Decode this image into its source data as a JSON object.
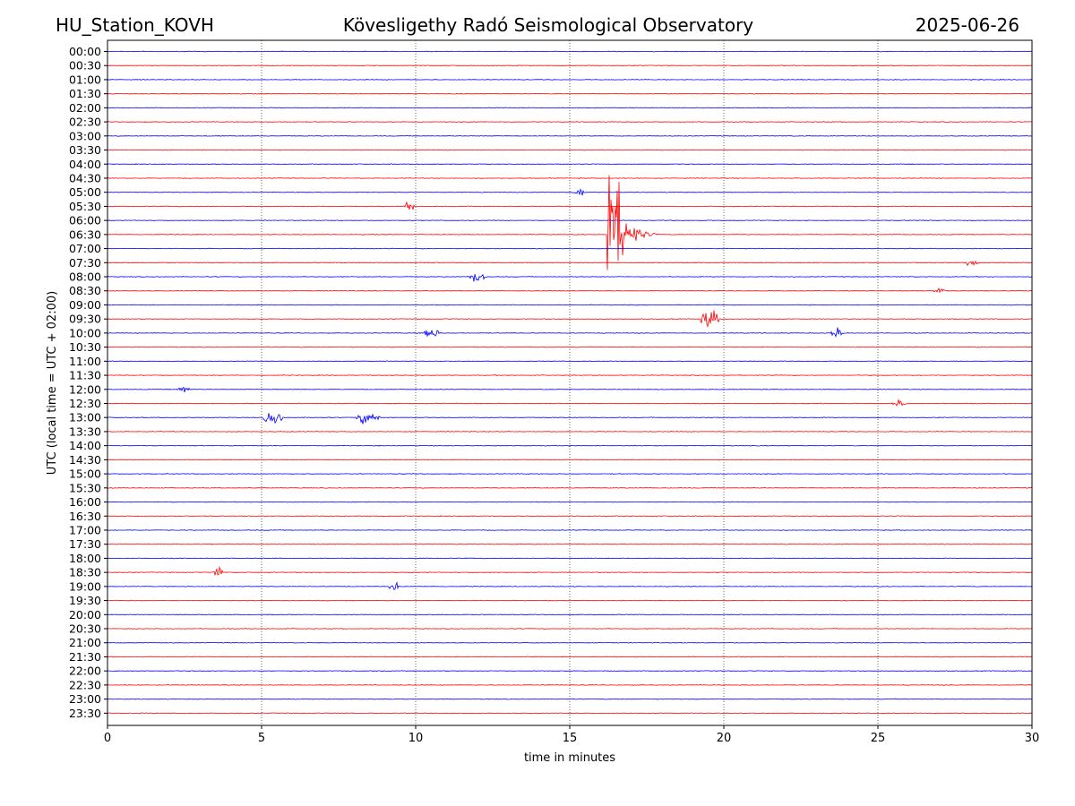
{
  "header": {
    "station": "HU_Station_KOVH",
    "title": "Kövesligethy Radó Seismological Observatory",
    "date": "2025-06-26"
  },
  "chart_data": {
    "type": "line",
    "title": "Kövesligethy Radó Seismological Observatory",
    "xlabel": "time in minutes",
    "ylabel": "UTC (local time = UTC + 02:00)",
    "xlim": [
      0,
      30
    ],
    "xticks": [
      "0",
      "5",
      "10",
      "15",
      "20",
      "25",
      "30"
    ],
    "grid": "vertical dotted at 5-minute ticks",
    "trace_colors": [
      "#0000ff",
      "#ff0000"
    ],
    "rows": [
      "00:00",
      "00:30",
      "01:00",
      "01:30",
      "02:00",
      "02:30",
      "03:00",
      "03:30",
      "04:00",
      "04:30",
      "05:00",
      "05:30",
      "06:00",
      "06:30",
      "07:00",
      "07:30",
      "08:00",
      "08:30",
      "09:00",
      "09:30",
      "10:00",
      "10:30",
      "11:00",
      "11:30",
      "12:00",
      "12:30",
      "13:00",
      "13:30",
      "14:00",
      "14:30",
      "15:00",
      "15:30",
      "16:00",
      "16:30",
      "17:00",
      "17:30",
      "18:00",
      "18:30",
      "19:00",
      "19:30",
      "20:00",
      "20:30",
      "21:00",
      "21:30",
      "22:00",
      "22:30",
      "23:00",
      "23:30"
    ],
    "events": [
      {
        "row": "06:30",
        "start_min": 16.2,
        "duration_min": 1.6,
        "amplitude": 11.0,
        "kind": "earthquake"
      },
      {
        "row": "09:30",
        "start_min": 19.2,
        "duration_min": 0.7,
        "amplitude": 1.1,
        "kind": "burst"
      },
      {
        "row": "13:00",
        "start_min": 5.0,
        "duration_min": 0.8,
        "amplitude": 0.8,
        "kind": "burst"
      },
      {
        "row": "13:00",
        "start_min": 8.0,
        "duration_min": 0.9,
        "amplitude": 0.7,
        "kind": "burst"
      },
      {
        "row": "08:00",
        "start_min": 11.7,
        "duration_min": 0.6,
        "amplitude": 0.7,
        "kind": "burst"
      },
      {
        "row": "10:00",
        "start_min": 10.2,
        "duration_min": 0.6,
        "amplitude": 0.6,
        "kind": "burst"
      },
      {
        "row": "05:30",
        "start_min": 9.6,
        "duration_min": 0.4,
        "amplitude": 0.6,
        "kind": "burst"
      },
      {
        "row": "18:30",
        "start_min": 3.4,
        "duration_min": 0.4,
        "amplitude": 0.7,
        "kind": "burst"
      },
      {
        "row": "05:00",
        "start_min": 15.1,
        "duration_min": 0.4,
        "amplitude": 0.6,
        "kind": "burst"
      },
      {
        "row": "07:30",
        "start_min": 27.8,
        "duration_min": 0.5,
        "amplitude": 0.5,
        "kind": "burst"
      },
      {
        "row": "08:30",
        "start_min": 26.8,
        "duration_min": 0.4,
        "amplitude": 0.5,
        "kind": "burst"
      },
      {
        "row": "19:00",
        "start_min": 9.1,
        "duration_min": 0.4,
        "amplitude": 0.5,
        "kind": "burst"
      },
      {
        "row": "10:00",
        "start_min": 23.4,
        "duration_min": 0.5,
        "amplitude": 0.6,
        "kind": "burst"
      },
      {
        "row": "12:30",
        "start_min": 25.4,
        "duration_min": 0.6,
        "amplitude": 0.4,
        "kind": "burst"
      },
      {
        "row": "12:00",
        "start_min": 2.2,
        "duration_min": 0.5,
        "amplitude": 0.4,
        "kind": "burst"
      }
    ]
  }
}
